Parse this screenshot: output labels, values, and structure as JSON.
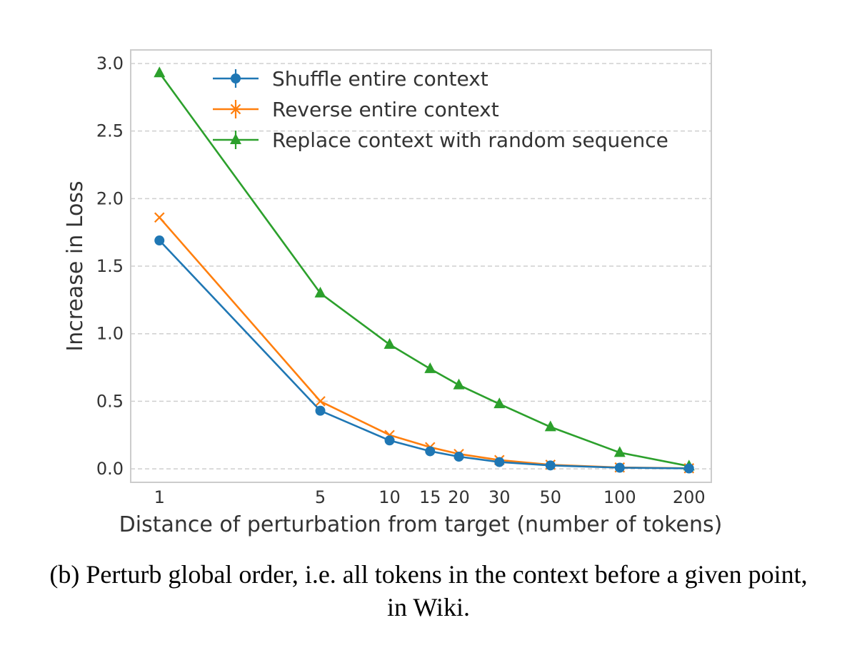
{
  "chart_data": {
    "type": "line",
    "title": "",
    "xlabel": "Distance of perturbation from target (number of tokens)",
    "ylabel": "Increase in Loss",
    "x_scale": "log",
    "x": [
      1,
      5,
      10,
      15,
      20,
      30,
      50,
      100,
      200
    ],
    "x_tick_labels": [
      "1",
      "5",
      "10",
      "15",
      "20",
      "30",
      "50",
      "100",
      "200"
    ],
    "xlim": [
      0.75,
      250
    ],
    "ylim": [
      -0.1,
      3.1
    ],
    "y_ticks": [
      0.0,
      0.5,
      1.0,
      1.5,
      2.0,
      2.5,
      3.0
    ],
    "y_tick_labels": [
      "0.0",
      "0.5",
      "1.0",
      "1.5",
      "2.0",
      "2.5",
      "3.0"
    ],
    "grid": "horizontal dashed",
    "legend_position": "top-right",
    "series": [
      {
        "name": "Shuffle entire context",
        "color": "#1f77b4",
        "marker": "circle",
        "values": [
          1.69,
          0.43,
          0.21,
          0.13,
          0.09,
          0.05,
          0.025,
          0.008,
          0.003
        ]
      },
      {
        "name": "Reverse entire context",
        "color": "#ff7f0e",
        "marker": "x",
        "values": [
          1.86,
          0.5,
          0.25,
          0.16,
          0.11,
          0.065,
          0.03,
          0.01,
          0.004
        ]
      },
      {
        "name": "Replace context with random sequence",
        "color": "#2ca02c",
        "marker": "triangle",
        "values": [
          2.93,
          1.3,
          0.92,
          0.74,
          0.62,
          0.48,
          0.31,
          0.12,
          0.02
        ]
      }
    ]
  },
  "caption": "(b) Perturb global order, i.e. all tokens in the context before a given point, in Wiki."
}
